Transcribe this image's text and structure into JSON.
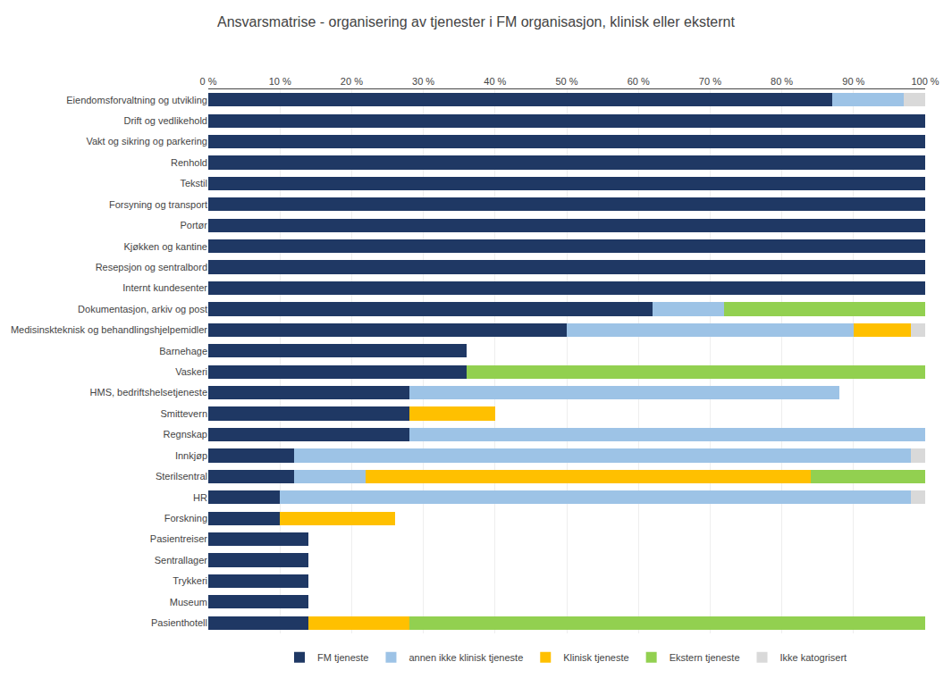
{
  "chart_data": {
    "type": "bar",
    "orientation": "horizontal",
    "stacked": true,
    "title": "Ansvarsmatrise - organisering av tjenester i FM organisasjon, klinisk eller eksternt",
    "categories": [
      "Eiendomsforvaltning og utvikling",
      "Drift og vedlikehold",
      "Vakt og sikring og parkering",
      "Renhold",
      "Tekstil",
      "Forsyning og transport",
      "Portør",
      "Kjøkken og kantine",
      "Resepsjon og sentralbord",
      "Internt kundesenter",
      "Dokumentasjon, arkiv og post",
      "Medisinskteknisk og behandlingshjelpemidler",
      "Barnehage",
      "Vaskeri",
      "HMS, bedriftshelsetjeneste",
      "Smittevern",
      "Regnskap",
      "Innkjøp",
      "Sterilsentral",
      "HR",
      "Forskning",
      "Pasientreiser",
      "Sentrallager",
      "Trykkeri",
      "Museum",
      "Pasienthotell"
    ],
    "series": [
      {
        "name": "FM tjeneste",
        "color": "#1F3864",
        "values": [
          87,
          100,
          100,
          100,
          100,
          100,
          100,
          100,
          100,
          100,
          62,
          50,
          36,
          36,
          28,
          28,
          28,
          12,
          12,
          10,
          10,
          14,
          14,
          14,
          14,
          14
        ]
      },
      {
        "name": "annen ikke klinisk tjeneste",
        "color": "#9DC3E6",
        "values": [
          10,
          0,
          0,
          0,
          0,
          0,
          0,
          0,
          0,
          0,
          10,
          40,
          0,
          0,
          60,
          0,
          72,
          86,
          10,
          88,
          0,
          0,
          0,
          0,
          0,
          0
        ]
      },
      {
        "name": "Klinisk tjeneste",
        "color": "#FFC000",
        "values": [
          0,
          0,
          0,
          0,
          0,
          0,
          0,
          0,
          0,
          0,
          0,
          8,
          0,
          0,
          0,
          12,
          0,
          0,
          62,
          0,
          16,
          0,
          0,
          0,
          0,
          14
        ]
      },
      {
        "name": "Ekstern tjeneste",
        "color": "#92D050",
        "values": [
          0,
          0,
          0,
          0,
          0,
          0,
          0,
          0,
          0,
          0,
          28,
          0,
          0,
          64,
          0,
          0,
          0,
          0,
          16,
          0,
          0,
          0,
          0,
          0,
          0,
          72
        ]
      },
      {
        "name": "Ikke katogrisert",
        "color": "#D9D9D9",
        "values": [
          3,
          0,
          0,
          0,
          0,
          0,
          0,
          0,
          0,
          0,
          0,
          2,
          0,
          0,
          0,
          0,
          0,
          2,
          0,
          2,
          0,
          0,
          0,
          0,
          0,
          0
        ]
      }
    ],
    "xlim": [
      0,
      100
    ],
    "xticks": [
      {
        "value": 0,
        "label": "0 %"
      },
      {
        "value": 10,
        "label": "10 %"
      },
      {
        "value": 20,
        "label": "20 %"
      },
      {
        "value": 30,
        "label": "30 %"
      },
      {
        "value": 40,
        "label": "40 %"
      },
      {
        "value": 50,
        "label": "50 %"
      },
      {
        "value": 60,
        "label": "60 %"
      },
      {
        "value": 70,
        "label": "70 %"
      },
      {
        "value": 80,
        "label": "80 %"
      },
      {
        "value": 90,
        "label": "90 %"
      },
      {
        "value": 100,
        "label": "100 %"
      }
    ],
    "grid": true,
    "legend": "bottom"
  }
}
